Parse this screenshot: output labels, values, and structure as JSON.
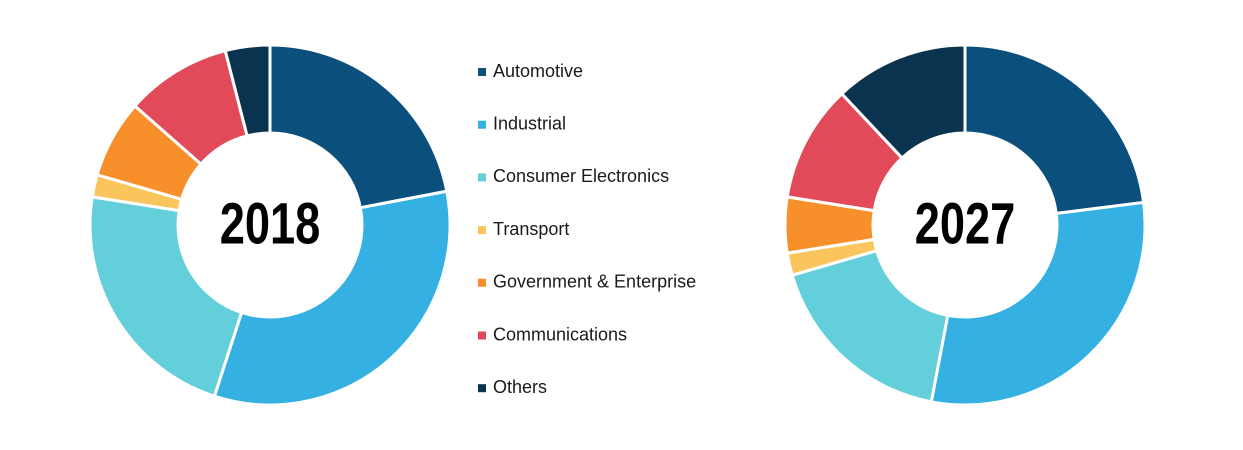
{
  "legend": {
    "categories": [
      "Automotive",
      "Industrial",
      "Consumer Electronics",
      "Transport",
      "Government & Enterprise",
      "Communications",
      "Others"
    ],
    "colors": [
      "#0b4f7c",
      "#35b0e3",
      "#63cfdb",
      "#fac55d",
      "#f7902b",
      "#e24a59",
      "#0a3350"
    ]
  },
  "chart_data": [
    {
      "type": "donut",
      "title": "2018",
      "values": [
        22,
        33,
        22.5,
        2,
        7,
        9.5,
        4
      ]
    },
    {
      "type": "donut",
      "title": "2027",
      "values": [
        23,
        30,
        17.5,
        2,
        5,
        10.5,
        12
      ]
    }
  ]
}
